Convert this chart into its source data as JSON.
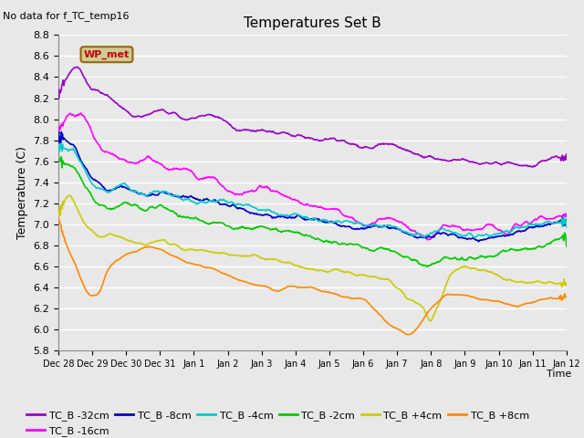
{
  "title": "Temperatures Set B",
  "subtitle": "No data for f_TC_temp16",
  "xlabel": "Time",
  "ylabel": "Temperature (C)",
  "ylim": [
    5.8,
    8.7
  ],
  "xlim": [
    0,
    15
  ],
  "series_colors": {
    "TC_B -32cm": "#9900cc",
    "TC_B -16cm": "#ff00ff",
    "TC_B -8cm": "#0000cc",
    "TC_B -4cm": "#00cccc",
    "TC_B -2cm": "#00cc00",
    "TC_B +4cm": "#cccc00",
    "TC_B +8cm": "#ff8800"
  },
  "wp_met_color": "#cc0000",
  "wp_met_bg": "#cccc99",
  "plot_bg": "#e8e8e8",
  "fig_bg": "#e8e8e8",
  "n_points": 1000,
  "tick_labels": [
    "Dec 28",
    "Dec 29",
    "Dec 30",
    "Dec 31",
    "Jan 1",
    "Jan 2",
    "Jan 3",
    "Jan 4",
    "Jan 5",
    "Jan 6",
    "Jan 7",
    "Jan 8",
    "Jan 9",
    "Jan 10",
    "Jan 11",
    "Jan 12"
  ],
  "legend_entries": [
    "TC_B -32cm",
    "TC_B -16cm",
    "TC_B -8cm",
    "TC_B -4cm",
    "TC_B -2cm",
    "TC_B +4cm",
    "TC_B +8cm"
  ]
}
